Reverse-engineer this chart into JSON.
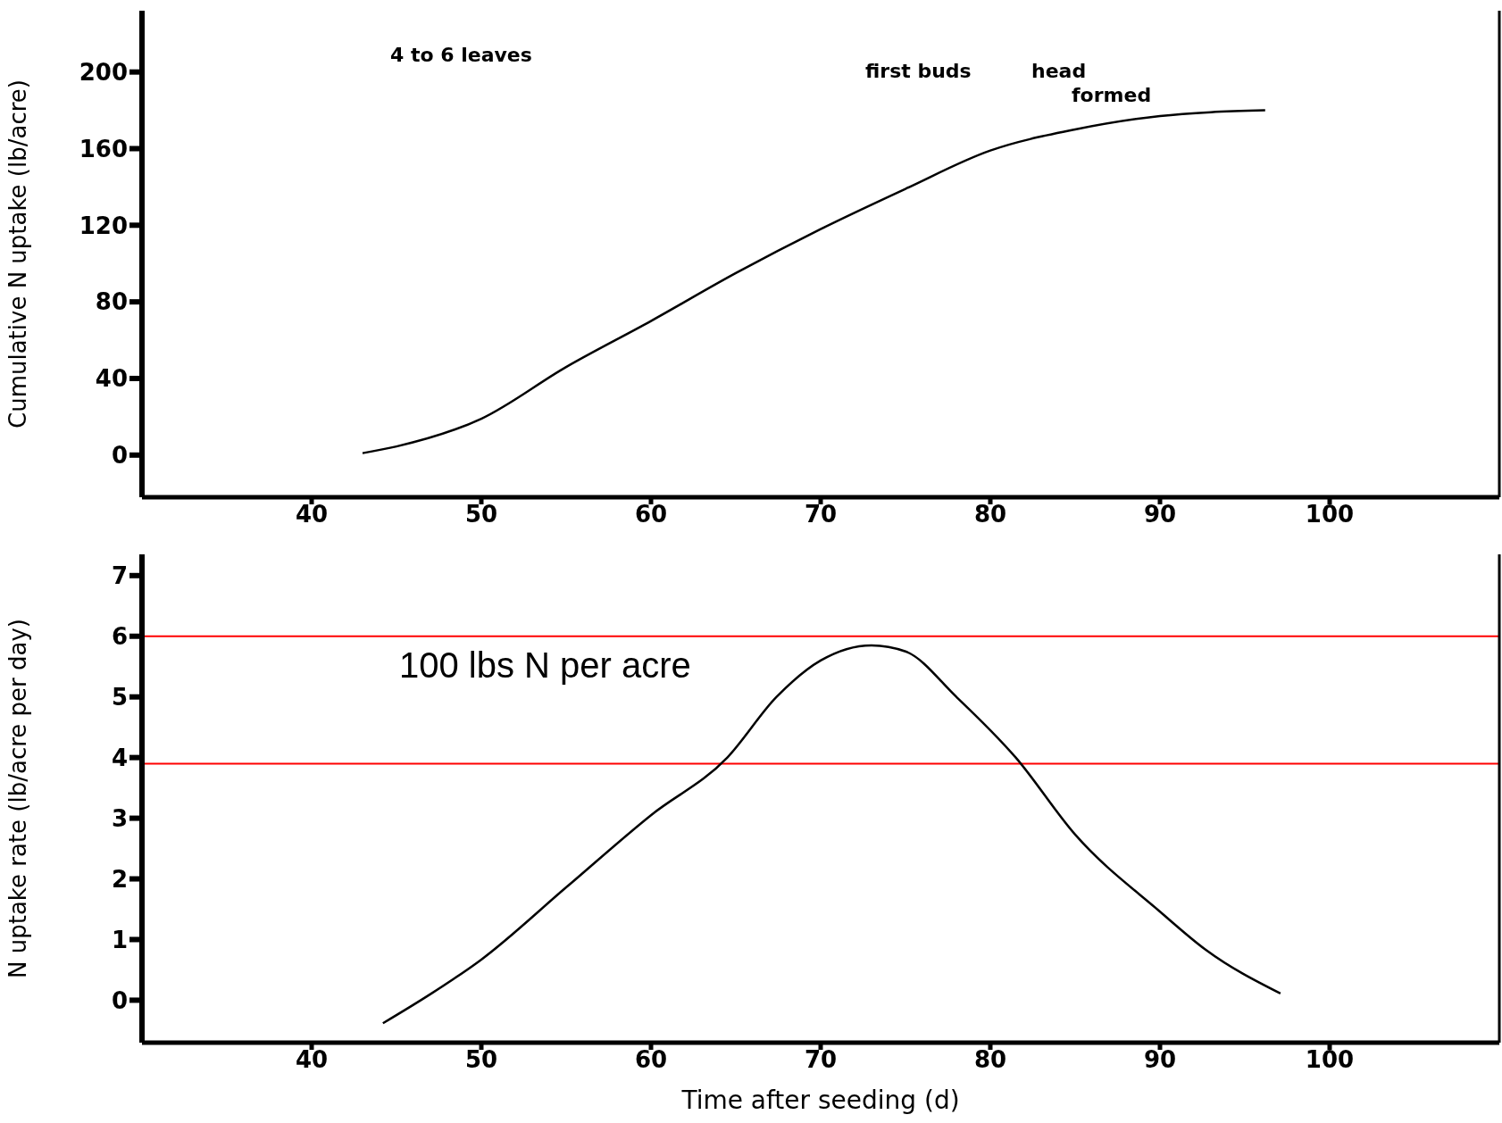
{
  "chart_data": [
    {
      "type": "line",
      "ylabel": "Cumulative N uptake (lb/acre)",
      "xlim": [
        30,
        110
      ],
      "xticks": [
        40,
        50,
        60,
        70,
        80,
        90,
        100
      ],
      "ylim": [
        -22,
        232
      ],
      "yticks": [
        0,
        40,
        80,
        120,
        160,
        200
      ],
      "marker": "none",
      "line_style": "solid",
      "series": [
        {
          "color": "#000000",
          "x": [
            43,
            45,
            50,
            55,
            60,
            65,
            70,
            75,
            80,
            85,
            90,
            93,
            96.2
          ],
          "values": [
            1,
            4.5,
            19,
            46,
            70,
            95,
            118,
            139,
            159,
            170,
            177,
            179,
            180
          ]
        }
      ],
      "annotations": [
        "4 to 6 leaves",
        "first buds",
        "head formed"
      ]
    },
    {
      "type": "line",
      "xlabel": "Time after seeding (d)",
      "ylabel": "N uptake rate (lb/acre per day)",
      "xlim": [
        30,
        110
      ],
      "xticks": [
        40,
        50,
        60,
        70,
        80,
        90,
        100
      ],
      "ylim": [
        -0.7,
        7.35
      ],
      "yticks": [
        0,
        1,
        2,
        3,
        4,
        5,
        6,
        7
      ],
      "marker": "none",
      "line_style": "solid",
      "series": [
        {
          "color": "#000000",
          "x": [
            44.2,
            47,
            50,
            55,
            60,
            64.5,
            67.4,
            70,
            73,
            75,
            78,
            81.5,
            85,
            90,
            92.7,
            97.1
          ],
          "values": [
            -0.38,
            0.1,
            0.67,
            1.86,
            3.05,
            4.0,
            5.0,
            5.6,
            5.85,
            5.75,
            5.0,
            4.0,
            2.73,
            1.46,
            0.83,
            0.11
          ]
        }
      ],
      "ref_lines": [
        {
          "axis": "y",
          "value": 6,
          "color": "#ff0000"
        },
        {
          "axis": "y",
          "value": 3.9,
          "color": "#ff0000"
        }
      ],
      "annotations": [
        "100 lbs N per acre"
      ]
    }
  ]
}
